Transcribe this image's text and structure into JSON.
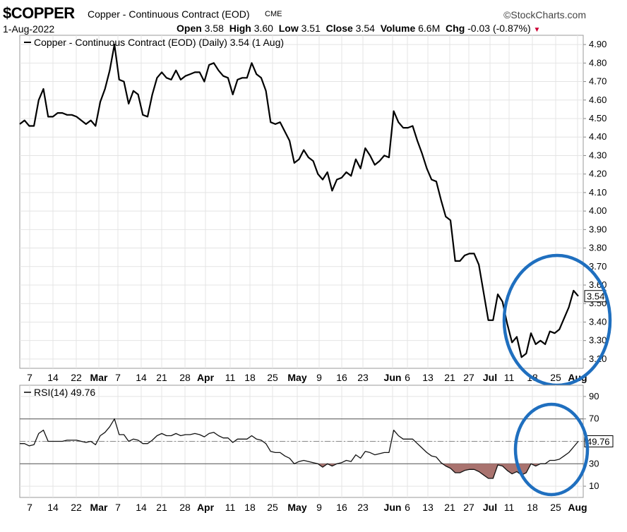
{
  "header": {
    "symbol": "$COPPER",
    "description": "Copper - Continuous Contract (EOD)",
    "exchange": "CME",
    "brand": "©StockCharts.com",
    "date": "1-Aug-2022",
    "open_label": "Open",
    "open": "3.58",
    "high_label": "High",
    "high": "3.60",
    "low_label": "Low",
    "low": "3.51",
    "close_label": "Close",
    "close": "3.54",
    "volume_label": "Volume",
    "volume": "6.6M",
    "chg_label": "Chg",
    "chg": "-0.03 (-0.87%)",
    "chg_arrow": "▼"
  },
  "chart_data": [
    {
      "type": "line",
      "legend": "Copper - Continuous Contract (EOD) (Daily) 3.54 (1 Aug)",
      "last_value_label": "3.54",
      "ylim": [
        3.15,
        4.95
      ],
      "yticks": [
        "4.90",
        "4.80",
        "4.70",
        "4.60",
        "4.50",
        "4.40",
        "4.30",
        "4.20",
        "4.10",
        "4.00",
        "3.90",
        "3.80",
        "3.70",
        "3.60",
        "3.50",
        "3.40",
        "3.30",
        "3.20"
      ],
      "x_labels": [
        {
          "text": "7",
          "bold": false
        },
        {
          "text": "14",
          "bold": false
        },
        {
          "text": "22",
          "bold": false
        },
        {
          "text": "Mar",
          "bold": true
        },
        {
          "text": "7",
          "bold": false
        },
        {
          "text": "14",
          "bold": false
        },
        {
          "text": "21",
          "bold": false
        },
        {
          "text": "28",
          "bold": false
        },
        {
          "text": "Apr",
          "bold": true
        },
        {
          "text": "11",
          "bold": false
        },
        {
          "text": "18",
          "bold": false
        },
        {
          "text": "25",
          "bold": false
        },
        {
          "text": "May",
          "bold": true
        },
        {
          "text": "9",
          "bold": false
        },
        {
          "text": "16",
          "bold": false
        },
        {
          "text": "23",
          "bold": false
        },
        {
          "text": "Jun",
          "bold": true
        },
        {
          "text": "6",
          "bold": false
        },
        {
          "text": "13",
          "bold": false
        },
        {
          "text": "21",
          "bold": false
        },
        {
          "text": "27",
          "bold": false
        },
        {
          "text": "Jul",
          "bold": true
        },
        {
          "text": "11",
          "bold": false
        },
        {
          "text": "18",
          "bold": false
        },
        {
          "text": "25",
          "bold": false
        },
        {
          "text": "Aug",
          "bold": true
        }
      ],
      "values": [
        4.47,
        4.49,
        4.46,
        4.46,
        4.6,
        4.66,
        4.51,
        4.51,
        4.53,
        4.53,
        4.52,
        4.52,
        4.51,
        4.49,
        4.47,
        4.49,
        4.46,
        4.59,
        4.66,
        4.76,
        4.9,
        4.71,
        4.7,
        4.58,
        4.65,
        4.63,
        4.52,
        4.51,
        4.63,
        4.72,
        4.75,
        4.72,
        4.71,
        4.76,
        4.71,
        4.73,
        4.74,
        4.75,
        4.75,
        4.7,
        4.79,
        4.8,
        4.76,
        4.73,
        4.72,
        4.63,
        4.71,
        4.72,
        4.72,
        4.8,
        4.74,
        4.72,
        4.65,
        4.48,
        4.47,
        4.48,
        4.43,
        4.38,
        4.26,
        4.28,
        4.33,
        4.29,
        4.27,
        4.2,
        4.17,
        4.21,
        4.11,
        4.17,
        4.18,
        4.21,
        4.19,
        4.28,
        4.23,
        4.34,
        4.3,
        4.25,
        4.27,
        4.3,
        4.29,
        4.54,
        4.48,
        4.45,
        4.45,
        4.46,
        4.38,
        4.31,
        4.23,
        4.17,
        4.16,
        4.06,
        3.97,
        3.95,
        3.73,
        3.73,
        3.76,
        3.77,
        3.77,
        3.71,
        3.56,
        3.41,
        3.41,
        3.55,
        3.51,
        3.39,
        3.29,
        3.32,
        3.21,
        3.23,
        3.34,
        3.28,
        3.3,
        3.28,
        3.35,
        3.34,
        3.36,
        3.42,
        3.48,
        3.57,
        3.54
      ]
    },
    {
      "type": "line",
      "legend": "RSI(14) 49.76",
      "last_value_label": "49.76",
      "ylim": [
        0,
        100
      ],
      "yticks": [
        "90",
        "70",
        "50",
        "30",
        "10"
      ],
      "overbought": 70,
      "oversold": 30,
      "midline": 50,
      "values": [
        48,
        48,
        46,
        47,
        57,
        60,
        50,
        50,
        50,
        50,
        51,
        51,
        51,
        50,
        49,
        50,
        47,
        55,
        58,
        63,
        70,
        56,
        56,
        50,
        52,
        51,
        48,
        48,
        51,
        55,
        57,
        55,
        55,
        57,
        55,
        56,
        56,
        57,
        56,
        54,
        57,
        58,
        55,
        53,
        53,
        49,
        52,
        52,
        52,
        55,
        52,
        51,
        48,
        41,
        40,
        40,
        37,
        35,
        30,
        32,
        33,
        32,
        31,
        30,
        27,
        30,
        28,
        30,
        31,
        33,
        32,
        38,
        35,
        41,
        40,
        38,
        39,
        40,
        40,
        60,
        55,
        52,
        52,
        52,
        48,
        44,
        40,
        37,
        36,
        31,
        28,
        26,
        22,
        22,
        24,
        25,
        25,
        23,
        20,
        17,
        17,
        29,
        28,
        24,
        21,
        23,
        20,
        22,
        30,
        28,
        30,
        30,
        33,
        33,
        34,
        37,
        40,
        45,
        50
      ]
    }
  ]
}
